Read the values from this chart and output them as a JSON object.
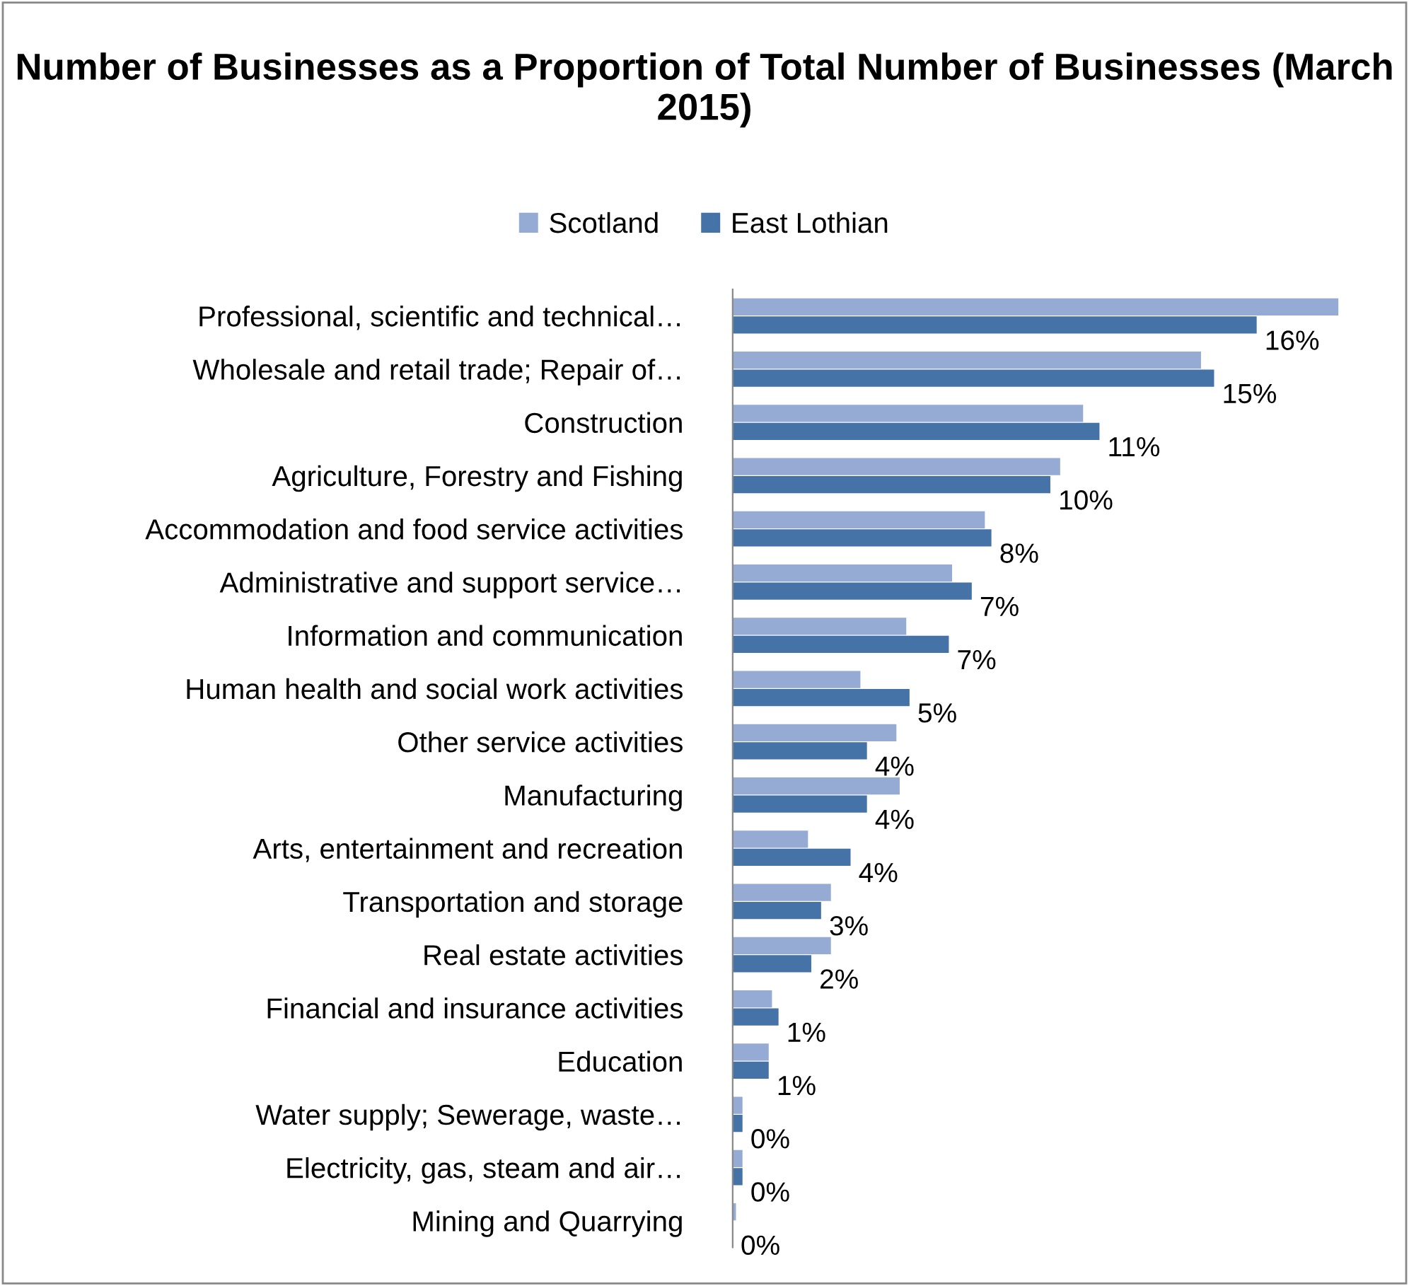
{
  "chart_data": {
    "type": "bar",
    "orientation": "horizontal",
    "title": "Number of Businesses as a Proportion of Total Number of Businesses (March 2015)",
    "categories": [
      "Professional, scientific and technical…",
      "Wholesale and retail trade; Repair of…",
      "Construction",
      "Agriculture, Forestry and Fishing",
      "Accommodation and food service activities",
      "Administrative and support service…",
      "Information and communication",
      "Human health and social work activities",
      "Other service activities",
      "Manufacturing",
      "Arts, entertainment and recreation",
      "Transportation and storage",
      "Real estate activities",
      "Financial and insurance activities",
      "Education",
      "Water supply; Sewerage, waste…",
      "Electricity, gas, steam and air…",
      "Mining and Quarrying"
    ],
    "series": [
      {
        "name": "Scotland",
        "color": "#95abd4",
        "values": [
          18.5,
          14.3,
          10.7,
          10.0,
          7.7,
          6.7,
          5.3,
          3.9,
          5.0,
          5.1,
          2.3,
          3.0,
          3.0,
          1.2,
          1.1,
          0.3,
          0.3,
          0.1
        ]
      },
      {
        "name": "East Lothian",
        "color": "#4572a7",
        "values": [
          16.0,
          14.7,
          11.2,
          9.7,
          7.9,
          7.3,
          6.6,
          5.4,
          4.1,
          4.1,
          3.6,
          2.7,
          2.4,
          1.4,
          1.1,
          0.3,
          0.3,
          0.0
        ],
        "value_labels": [
          "16%",
          "15%",
          "11%",
          "10%",
          "8%",
          "7%",
          "7%",
          "5%",
          "4%",
          "4%",
          "4%",
          "3%",
          "2%",
          "1%",
          "1%",
          "0%",
          "0%",
          "0%"
        ]
      }
    ],
    "legend": "top",
    "grid": false,
    "tick_labels": "y"
  }
}
